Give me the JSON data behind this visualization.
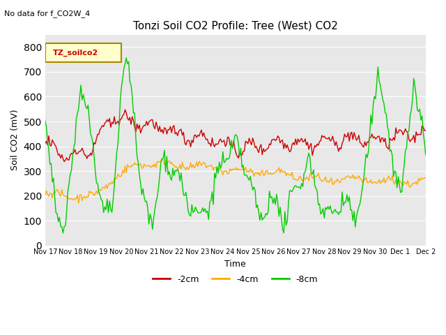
{
  "title": "Tonzi Soil CO2 Profile: Tree (West) CO2",
  "top_label": "No data for f_CO2W_4",
  "ylabel": "Soil CO2 (mV)",
  "xlabel": "Time",
  "legend_label": "TZ_soilco2",
  "series_labels": [
    "-2cm",
    "-4cm",
    "-8cm"
  ],
  "series_colors": [
    "#cc0000",
    "#ffaa00",
    "#00cc00"
  ],
  "ylim": [
    0,
    850
  ],
  "yticks": [
    0,
    100,
    200,
    300,
    400,
    500,
    600,
    700,
    800
  ],
  "background_color": "#e8e8e8",
  "xtick_labels": [
    "Nov 17",
    "Nov 18",
    "Nov 19",
    "Nov 20",
    "Nov 21",
    "Nov 22",
    "Nov 23",
    "Nov 24",
    "Nov 25",
    "Nov 26",
    "Nov 27",
    "Nov 28",
    "Nov 29",
    "Nov 30",
    "Dec 1",
    "Dec 2"
  ],
  "num_points": 320
}
